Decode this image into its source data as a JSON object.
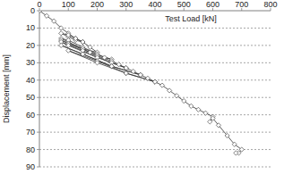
{
  "chart_data": {
    "type": "line",
    "x_label": "Test Load [kN]",
    "y_label": "Displacement [mm]",
    "x": [
      0,
      25,
      50,
      75,
      100,
      125,
      150,
      125,
      100,
      75,
      100,
      125,
      150,
      175,
      200,
      150,
      100,
      75,
      100,
      150,
      200,
      225,
      250,
      175,
      100,
      75,
      150,
      200,
      250,
      275,
      300,
      200,
      100,
      75,
      150,
      250,
      300,
      325,
      350,
      250,
      150,
      75,
      150,
      250,
      350,
      375,
      400,
      300,
      200,
      100,
      200,
      300,
      400,
      425,
      450,
      475,
      500,
      525,
      550,
      575,
      600,
      590,
      600,
      620,
      650,
      675,
      700,
      690,
      680
    ],
    "values": [
      0,
      3,
      6,
      10,
      13,
      16,
      18,
      17,
      15,
      13,
      14,
      16,
      18,
      21,
      24,
      22,
      18,
      16,
      17,
      21,
      25,
      27,
      28,
      24,
      19,
      17,
      22,
      26,
      29,
      31,
      33,
      27,
      20,
      18,
      23,
      30,
      33,
      35,
      37,
      32,
      25,
      20,
      25,
      32,
      37,
      39,
      41,
      36,
      29,
      23,
      30,
      36,
      41,
      43,
      46,
      49,
      52,
      55,
      57,
      59,
      61,
      64,
      62,
      66,
      72,
      77,
      80,
      82,
      82
    ],
    "color": "#333333",
    "marker": "diamond",
    "xlim": [
      0,
      800
    ],
    "xticks": [
      0,
      100,
      200,
      300,
      400,
      500,
      600,
      700,
      800
    ],
    "ylim": [
      0,
      90
    ],
    "yticks": [
      0,
      10,
      20,
      30,
      40,
      50,
      60,
      70,
      80,
      90
    ],
    "grid": true
  }
}
